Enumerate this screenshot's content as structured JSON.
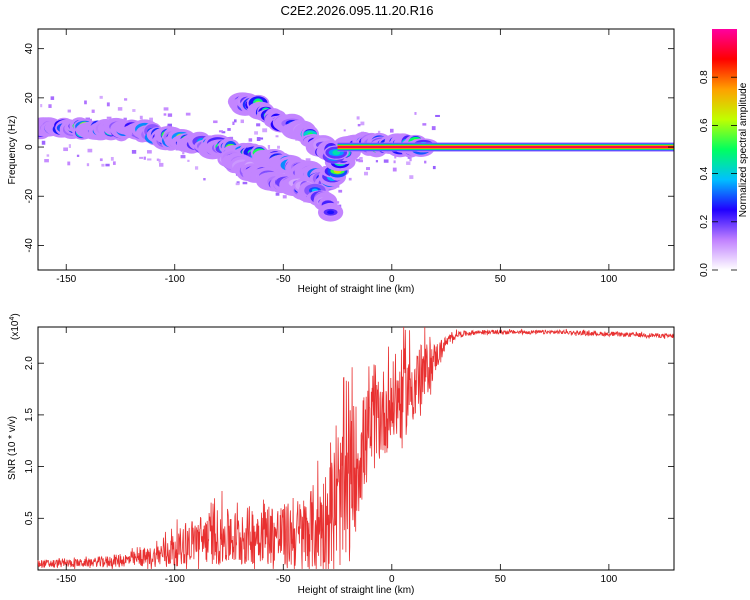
{
  "title": "C2E2.2026.095.11.20.R16",
  "chart_data": [
    {
      "type": "heatmap",
      "name": "spectrogram",
      "xlabel": "Height of straight line (km)",
      "ylabel": "Frequency (Hz)",
      "xlim": [
        -163,
        130
      ],
      "ylim": [
        -50,
        48
      ],
      "xticks": [
        -150,
        -100,
        -50,
        0,
        50,
        100
      ],
      "xtick_labels": [
        "-150",
        "-100",
        "-50",
        "0",
        "50",
        "100"
      ],
      "yticks": [
        -40,
        -20,
        0,
        20,
        40
      ],
      "ytick_labels": [
        "-40",
        "-20",
        "0",
        "20",
        "40"
      ],
      "colorbar": {
        "label": "Normalized spectral amplitude",
        "range": [
          0,
          1
        ],
        "ticks": [
          0.0,
          0.2,
          0.4,
          0.6,
          0.8
        ],
        "tick_labels": [
          "0.0",
          "0.2",
          "0.4",
          "0.6",
          "0.8"
        ],
        "colors": [
          "#ffffff",
          "#c080ff",
          "#2000ff",
          "#00c0ff",
          "#00ff60",
          "#c0ff00",
          "#ffa000",
          "#ff0000",
          "#ff00a0"
        ]
      },
      "features": [
        {
          "name": "main-trend",
          "x": [
            -163,
            -140,
            -120,
            -100,
            -80,
            -70,
            -60,
            -50,
            -40,
            -30,
            -25,
            -20,
            -10,
            0,
            10,
            15
          ],
          "y": [
            8,
            7,
            7,
            3,
            0,
            -2,
            -4,
            -6,
            -10,
            -14,
            -10,
            1,
            1,
            1,
            1,
            0
          ],
          "amplitude": 0.55
        },
        {
          "name": "upper-branch",
          "x": [
            -70,
            -62,
            -55,
            -45,
            -38,
            -32,
            -25
          ],
          "y": [
            18,
            17,
            12,
            8,
            4,
            0,
            -4
          ],
          "amplitude": 0.45
        },
        {
          "name": "lower-branch",
          "x": [
            -75,
            -65,
            -55,
            -45,
            -35,
            -28
          ],
          "y": [
            -5,
            -9,
            -13,
            -15,
            -19,
            -26
          ],
          "amplitude": 0.35
        },
        {
          "name": "carrier",
          "x": [
            -25,
            130
          ],
          "y": [
            0,
            0
          ],
          "amplitude": 0.95
        }
      ]
    },
    {
      "type": "line",
      "name": "snr",
      "xlabel": "Height of straight line (km)",
      "ylabel": "SNR (10 * v/v)",
      "multiplier_label": "(x10",
      "multiplier_exp": "4",
      "xlim": [
        -163,
        130
      ],
      "ylim": [
        0,
        2.35
      ],
      "xticks": [
        -150,
        -100,
        -50,
        0,
        50,
        100
      ],
      "xtick_labels": [
        "-150",
        "-100",
        "-50",
        "0",
        "50",
        "100"
      ],
      "yticks": [
        0.5,
        1.0,
        1.5,
        2.0
      ],
      "ytick_labels": [
        "0.5",
        "1.0",
        "1.5",
        "2.0"
      ],
      "color": "#e83030",
      "envelope": {
        "x": [
          -163,
          -140,
          -120,
          -110,
          -100,
          -90,
          -80,
          -70,
          -60,
          -50,
          -40,
          -30,
          -25,
          -20,
          -15,
          -10,
          -5,
          0,
          5,
          10,
          15,
          20,
          25,
          30,
          40,
          60,
          80,
          100,
          120,
          130
        ],
        "mean": [
          0.06,
          0.07,
          0.1,
          0.13,
          0.2,
          0.3,
          0.32,
          0.3,
          0.38,
          0.32,
          0.35,
          0.5,
          0.62,
          0.8,
          1.1,
          1.35,
          1.5,
          1.6,
          1.7,
          1.8,
          1.9,
          2.05,
          2.2,
          2.28,
          2.3,
          2.3,
          2.3,
          2.28,
          2.27,
          2.26
        ],
        "spread": [
          0.04,
          0.04,
          0.07,
          0.1,
          0.17,
          0.22,
          0.28,
          0.28,
          0.3,
          0.32,
          0.38,
          0.5,
          0.6,
          0.8,
          0.55,
          0.45,
          0.45,
          0.4,
          0.45,
          0.38,
          0.3,
          0.15,
          0.06,
          0.03,
          0.02,
          0.02,
          0.02,
          0.02,
          0.02,
          0.02
        ]
      }
    }
  ]
}
